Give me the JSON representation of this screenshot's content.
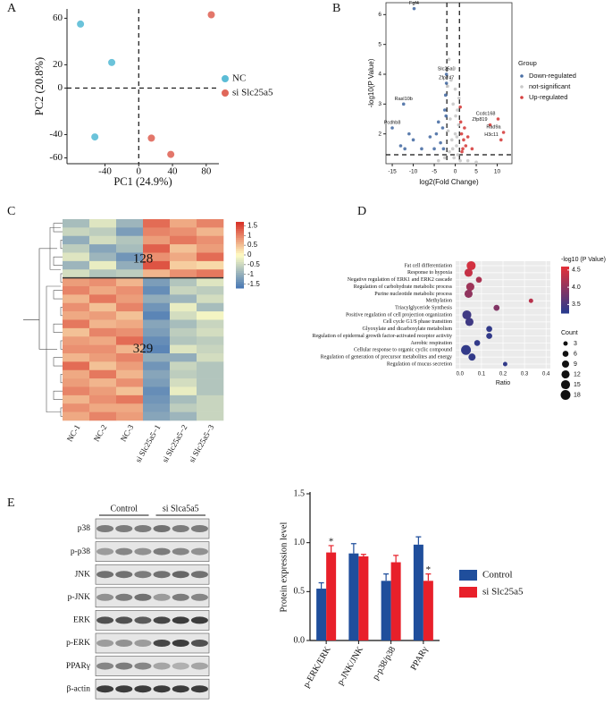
{
  "panel_labels": [
    "A",
    "B",
    "C",
    "D",
    "E"
  ],
  "blot": {
    "groups": [
      "Control",
      "si Slca5a5"
    ],
    "rows": [
      "p38",
      "p-p38",
      "JNK",
      "p-JNK",
      "ERK",
      "p-ERK",
      "PPARγ",
      "β-actin"
    ]
  },
  "chart_data": [
    {
      "type": "scatter",
      "x_label": "PC1 (24.9%)",
      "y_label": "PC2 (20.8%)",
      "xlim": [
        -85,
        95
      ],
      "ylim": [
        -65,
        68
      ],
      "xticks": [
        -40,
        0,
        40,
        80
      ],
      "yticks": [
        60,
        20,
        0,
        -40,
        -60
      ],
      "hlines": [
        0
      ],
      "vlines": [
        0
      ],
      "series": [
        {
          "name": "NC",
          "color": "#5bbcd6",
          "x": [
            -69,
            -32,
            -52
          ],
          "y": [
            55,
            22,
            -42
          ]
        },
        {
          "name": "si Slc25a5",
          "color": "#e0675a",
          "x": [
            86,
            15,
            38
          ],
          "y": [
            63,
            -43,
            -57
          ]
        }
      ]
    },
    {
      "type": "scatter",
      "x_label": "log2(Fold Change)",
      "y_label": "-log10(P Value)",
      "legend_title": "Group",
      "xlim": [
        -16.5,
        13.5
      ],
      "ylim": [
        1.0,
        6.4
      ],
      "xticks": [
        -15,
        -10,
        -5,
        0,
        5,
        10
      ],
      "yticks": [
        2,
        3,
        4,
        5,
        6
      ],
      "hlines": [
        1.3
      ],
      "vlines": [
        -2,
        1
      ],
      "series": [
        {
          "name": "Down-regulated",
          "color": "#4a6fa5",
          "x": [
            -9.8,
            -2.1,
            -2.1,
            -12.3,
            -15,
            -11,
            -13,
            -10,
            -6,
            -4,
            -3,
            -2.5,
            -3.5,
            -2.8,
            -5,
            -2.3,
            -2.2,
            -8,
            -12,
            -4.5
          ],
          "y": [
            6.2,
            4.0,
            3.7,
            3.0,
            2.2,
            2.0,
            1.6,
            1.8,
            1.9,
            2.4,
            2.2,
            2.8,
            1.7,
            1.5,
            1.5,
            3.3,
            2.6,
            1.5,
            1.5,
            2.0
          ],
          "labels": [
            "Fgf4",
            "Slc25a5",
            "Zfp747",
            "Rasl10b",
            "Pcdhb8",
            null,
            null,
            null,
            null,
            null,
            null,
            null,
            null,
            null,
            null,
            null,
            null,
            null,
            null,
            null
          ]
        },
        {
          "name": "not-significant",
          "color": "#c8c8c8",
          "x": [
            -1.5,
            -1,
            0,
            -0.5,
            0.5,
            -1.2,
            0.8,
            0,
            -0.8,
            0.3,
            -1.7,
            0.6,
            -0.3,
            -1.4,
            0.9,
            -0.2,
            0.4,
            -1.8,
            0.1,
            -0.6,
            1.2,
            -2.5,
            3,
            -4,
            5
          ],
          "y": [
            4.5,
            3.8,
            3.5,
            3.0,
            2.8,
            2.5,
            2.3,
            2.0,
            1.8,
            1.6,
            2.1,
            1.3,
            1.2,
            1.4,
            3.2,
            4.2,
            1.9,
            3.6,
            2.6,
            1.5,
            1.1,
            1.2,
            1.1,
            1.1,
            1.05
          ]
        },
        {
          "name": "Up-regulated",
          "color": "#d6403f",
          "x": [
            10.2,
            8.3,
            11.5,
            10.9,
            1.5,
            2,
            1.3,
            2.5,
            1.8,
            3,
            1.2,
            2.2,
            1.6,
            4
          ],
          "y": [
            2.5,
            2.3,
            2.05,
            1.8,
            2.0,
            1.8,
            2.4,
            1.6,
            1.5,
            1.9,
            2.9,
            2.2,
            1.4,
            1.5
          ],
          "labels": [
            "Ccdc168",
            "Zfp819",
            "Rad9a",
            "H3c11",
            null,
            null,
            null,
            null,
            null,
            null,
            null,
            null,
            null,
            null
          ]
        }
      ]
    },
    {
      "type": "heatmap",
      "categories": [
        "NC-1",
        "NC-2",
        "NC-3",
        "si Slc25a5−1",
        "si Slc25a5−2",
        "si Slc25a5−3"
      ],
      "cluster_labels": [
        "128",
        "329"
      ],
      "clim": [
        -1.7,
        1.7
      ],
      "colorbar_ticks": [
        1.5,
        1,
        0.5,
        0,
        -0.5,
        -1,
        -1.5
      ],
      "values": [
        [
          -0.8,
          -0.3,
          -0.9,
          1.2,
          0.7,
          1.0
        ],
        [
          -0.5,
          -0.6,
          -1.2,
          1.0,
          0.9,
          0.6
        ],
        [
          -1.0,
          -0.4,
          -0.7,
          0.8,
          1.1,
          0.9
        ],
        [
          -0.6,
          -1.1,
          -0.8,
          1.3,
          0.5,
          0.8
        ],
        [
          -0.3,
          -0.9,
          -1.3,
          0.9,
          0.7,
          1.2
        ],
        [
          -0.9,
          -0.2,
          -1.0,
          1.4,
          0.4,
          0.3
        ],
        [
          -0.4,
          -0.7,
          -0.6,
          0.6,
          0.9,
          1.1
        ],
        [
          0.8,
          0.9,
          0.6,
          -1.2,
          -0.7,
          -0.3
        ],
        [
          1.0,
          0.7,
          0.9,
          -1.4,
          -0.5,
          -0.6
        ],
        [
          0.6,
          1.1,
          0.8,
          -1.0,
          -0.9,
          -0.4
        ],
        [
          0.9,
          0.5,
          1.0,
          -1.3,
          -0.2,
          -0.8
        ],
        [
          0.7,
          0.8,
          0.5,
          -1.5,
          -0.4,
          -0.1
        ],
        [
          1.1,
          0.6,
          0.7,
          -1.1,
          -0.8,
          -0.5
        ],
        [
          0.5,
          1.0,
          0.9,
          -1.2,
          -0.6,
          -0.4
        ],
        [
          0.8,
          0.7,
          1.2,
          -1.4,
          -0.7,
          -0.6
        ],
        [
          0.9,
          0.9,
          0.6,
          -1.5,
          -0.3,
          -0.5
        ],
        [
          0.6,
          0.8,
          1.0,
          -1.0,
          -1.0,
          -0.4
        ],
        [
          1.2,
          0.5,
          0.8,
          -1.3,
          -0.5,
          -0.7
        ],
        [
          0.7,
          1.1,
          0.6,
          -1.1,
          -0.6,
          -0.7
        ],
        [
          0.8,
          0.6,
          0.9,
          -1.2,
          -0.4,
          -0.7
        ],
        [
          1.0,
          0.8,
          0.5,
          -1.4,
          -0.2,
          -0.7
        ],
        [
          0.6,
          0.9,
          1.1,
          -1.3,
          -0.8,
          -0.5
        ],
        [
          0.9,
          0.7,
          0.7,
          -1.2,
          -0.6,
          -0.5
        ],
        [
          0.7,
          1.0,
          0.8,
          -1.1,
          -0.9,
          -0.5
        ]
      ]
    },
    {
      "type": "bubble",
      "x_label": "Ratio",
      "color_title": "-log10 (P Value)",
      "size_title": "Count",
      "xlim": [
        -0.02,
        0.42
      ],
      "xticks": [
        {
          "value": 0,
          "label": "0.0"
        },
        0.1,
        0.2,
        0.3,
        0.4
      ],
      "categories": [
        "Fat cell differentiation",
        "Response to hypoxia",
        "Negative regulation of ERK1 and ERK2 cascade",
        "Regulation of carbohydrate metabolic process",
        "Purine nucleotide metabolic process",
        "Methylation",
        "Triacylglyceride Synthesis",
        "Positive regulation of cell projection organization",
        "Cell cycle G1/S phase transition",
        "Glyoxylate and dicarboxylate metabolism",
        "Regulation of epidermal growth factor-activated receptor activity",
        "Aerobic respiration",
        "Cellular response to organic cyclic compound",
        "Regulation of generation of precursor metabolites and energy",
        "Regulation of mucus secretion"
      ],
      "values": [
        0.052,
        0.04,
        0.088,
        0.048,
        0.04,
        0.33,
        0.17,
        0.032,
        0.044,
        0.136,
        0.136,
        0.08,
        0.028,
        0.056,
        0.21
      ],
      "sizes": [
        15,
        12,
        6,
        12,
        12,
        3,
        6,
        15,
        12,
        6,
        6,
        6,
        18,
        9,
        3
      ],
      "p_values": [
        4.5,
        4.4,
        4.2,
        4.1,
        4.0,
        4.3,
        3.9,
        3.4,
        3.4,
        3.3,
        3.3,
        3.3,
        3.3,
        3.3,
        3.3
      ],
      "clim": [
        3.25,
        4.6
      ],
      "colors": [
        "#2b3a8c",
        "#e0303a"
      ],
      "color_ticks": [
        4.5,
        {
          "value": 4,
          "label": "4.0"
        },
        3.5
      ],
      "size_ticks": [
        3,
        6,
        9,
        12,
        15,
        18
      ]
    },
    {
      "type": "bar",
      "y_label": "Protein expression level",
      "categories": [
        "p-ERK/ERK",
        "p-JNK/JNK",
        "p-p38/p38",
        "PPARγ"
      ],
      "ylim": [
        0,
        1.5
      ],
      "yticks": [
        {
          "value": 0,
          "label": "0.0"
        },
        0.5,
        {
          "value": 1,
          "label": "1.0"
        },
        1.5
      ],
      "series": [
        {
          "name": "Control",
          "color": "#1f4e9c",
          "values": [
            0.53,
            0.89,
            0.61,
            0.98
          ],
          "errors": [
            0.06,
            0.1,
            0.07,
            0.08
          ]
        },
        {
          "name": "si Slc25a5",
          "color": "#e8202a",
          "values": [
            0.9,
            0.86,
            0.8,
            0.61
          ],
          "errors": [
            0.07,
            0.02,
            0.07,
            0.07
          ],
          "significance": [
            "*",
            null,
            null,
            "*"
          ]
        }
      ]
    }
  ]
}
